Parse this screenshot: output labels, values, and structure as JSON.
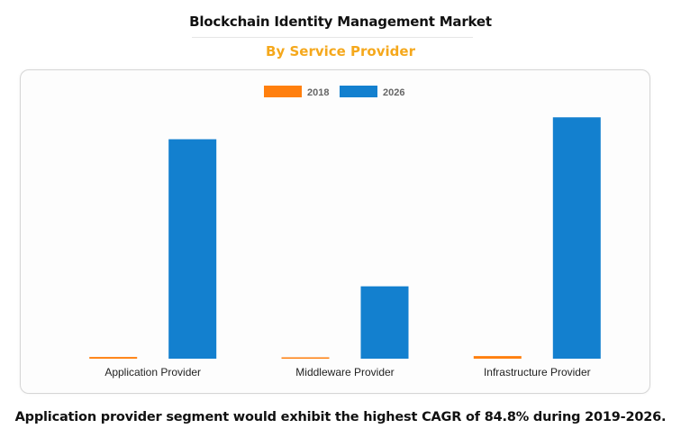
{
  "chart_data": {
    "type": "bar",
    "title": "Blockchain Identity Management Market",
    "subtitle": "By Service Provider",
    "categories": [
      "Application Provider",
      "Middleware Provider",
      "Infrastructure Provider"
    ],
    "series": [
      {
        "name": "2018",
        "color": "#ff7f0e",
        "values": [
          0.8,
          0.5,
          1.2
        ]
      },
      {
        "name": "2026",
        "color": "#1380cf",
        "values": [
          100,
          33,
          110
        ]
      }
    ],
    "ylim": [
      0,
      115
    ],
    "xlabel": "",
    "ylabel": "",
    "legend_position": "top-center",
    "grid": false
  },
  "caption": "Application provider segment would exhibit the highest CAGR of 84.8% during 2019-2026."
}
